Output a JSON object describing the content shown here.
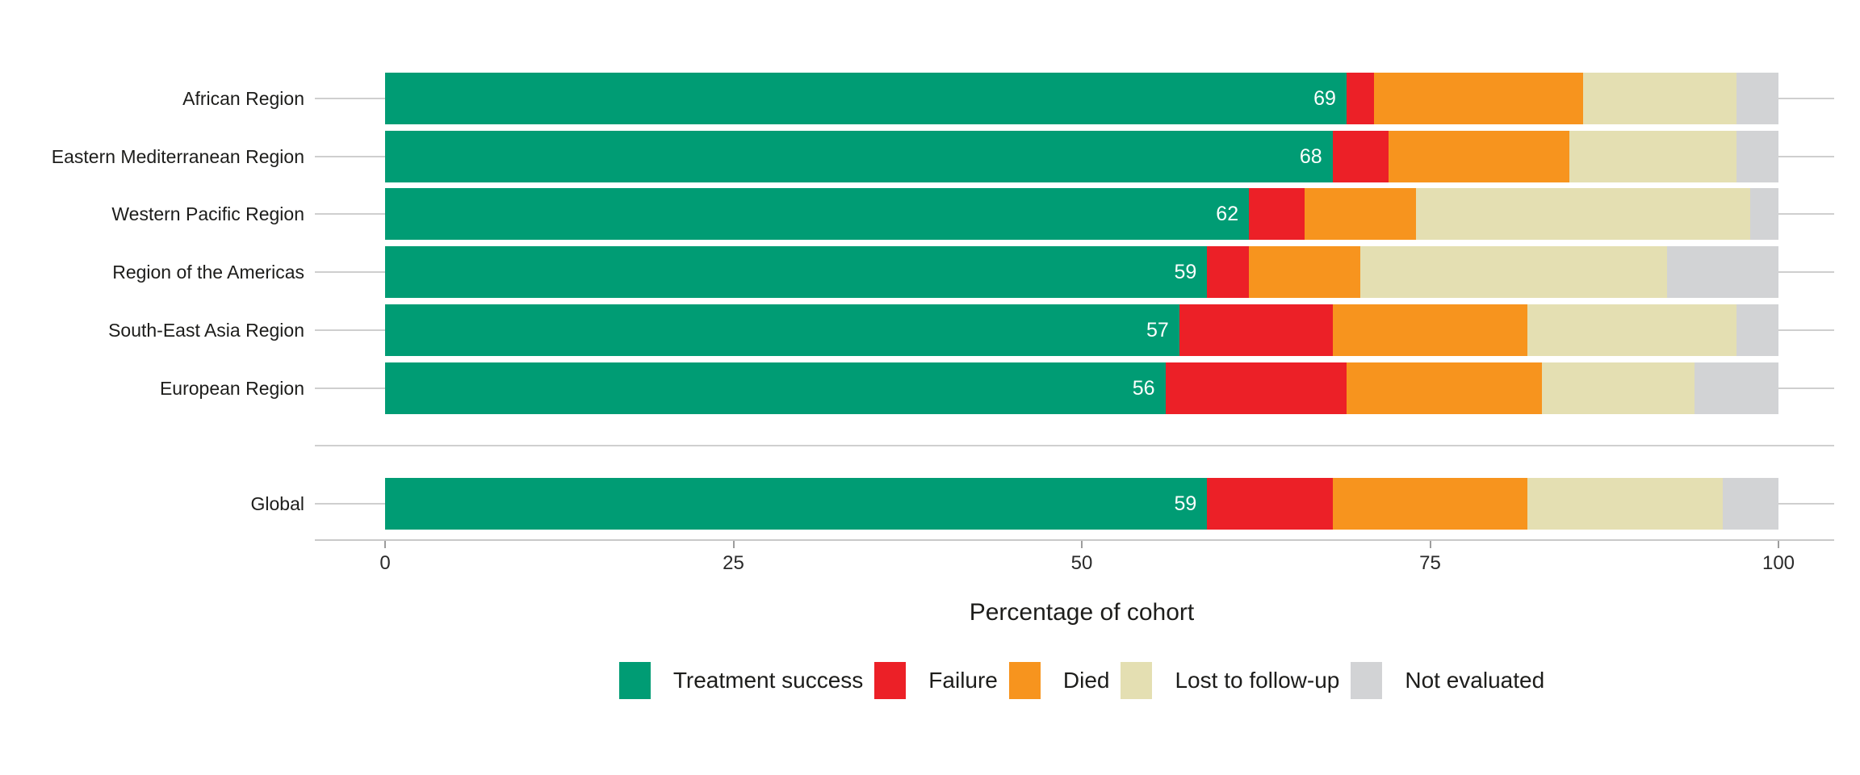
{
  "chart_data": {
    "type": "bar",
    "subtype": "horizontal_stacked_percentage",
    "title": "",
    "xlabel": "Percentage of cohort",
    "ylabel": "",
    "xlim": [
      0,
      100
    ],
    "x_ticks": [
      "0",
      "25",
      "50",
      "75",
      "100"
    ],
    "x_tick_values": [
      0,
      25,
      50,
      75,
      100
    ],
    "grid": "row_lines_behind_bars",
    "legend_position": "bottom_center",
    "series_names": [
      "Treatment success",
      "Failure",
      "Died",
      "Lost to follow-up",
      "Not evaluated"
    ],
    "series_colors": [
      "#009C74",
      "#EC2027",
      "#F7941E",
      "#E4DFB2",
      "#D2D3D5"
    ],
    "bar_value_label_series": "Treatment success",
    "rows": [
      {
        "label": "African Region",
        "group": "region",
        "values": [
          69,
          2,
          15,
          11,
          3
        ],
        "value_label": "69"
      },
      {
        "label": "Eastern Mediterranean Region",
        "group": "region",
        "values": [
          68,
          4,
          13,
          12,
          3
        ],
        "value_label": "68"
      },
      {
        "label": "Western Pacific Region",
        "group": "region",
        "values": [
          62,
          4,
          8,
          24,
          2
        ],
        "value_label": "62"
      },
      {
        "label": "Region of the Americas",
        "group": "region",
        "values": [
          59,
          3,
          8,
          22,
          8
        ],
        "value_label": "59"
      },
      {
        "label": "South-East Asia Region",
        "group": "region",
        "values": [
          57,
          11,
          14,
          15,
          3
        ],
        "value_label": "57"
      },
      {
        "label": "European Region",
        "group": "region",
        "values": [
          56,
          13,
          14,
          11,
          6
        ],
        "value_label": "56"
      },
      {
        "label": "Global",
        "group": "global",
        "values": [
          59,
          9,
          14,
          14,
          4
        ],
        "value_label": "59"
      }
    ]
  },
  "axis": {
    "title": "Percentage of cohort",
    "tick_labels": [
      "0",
      "25",
      "50",
      "75",
      "100"
    ]
  },
  "legend": {
    "items": [
      {
        "label": "Treatment success",
        "color": "#009C74"
      },
      {
        "label": "Failure",
        "color": "#EC2027"
      },
      {
        "label": "Died",
        "color": "#F7941E"
      },
      {
        "label": "Lost to follow-up",
        "color": "#E4DFB2"
      },
      {
        "label": "Not evaluated",
        "color": "#D2D3D5"
      }
    ]
  },
  "colors": {
    "background": "#ffffff",
    "gridline": "#cfcfcf",
    "axis_line": "#c9c9c9",
    "tick_mark": "#9d9d9d",
    "text": "#1d1d1b",
    "bar_value_text": "#ffffff"
  }
}
